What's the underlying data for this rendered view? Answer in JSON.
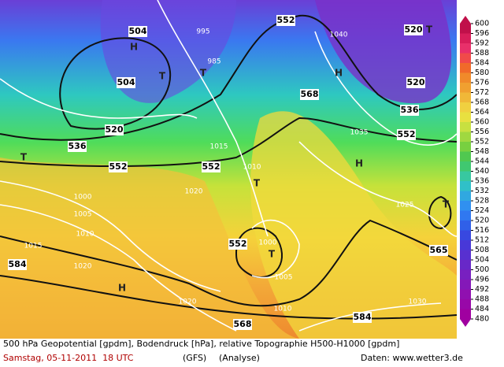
{
  "map": {
    "labels": [
      "504",
      "504",
      "520",
      "536",
      "552",
      "552",
      "552",
      "568",
      "536",
      "552",
      "520",
      "520",
      "552",
      "568",
      "584",
      "584",
      "565",
      "1000",
      "1005",
      "1010",
      "1015",
      "1020",
      "1025",
      "1035",
      "1040",
      "1020",
      "1015",
      "1010",
      "1005",
      "1000",
      "985",
      "995",
      "1030",
      "1020",
      "1010",
      "T",
      "T",
      "T",
      "T",
      "T",
      "H",
      "H",
      "H",
      "H",
      "T",
      "T"
    ]
  },
  "legend": {
    "ticks": [
      600,
      596,
      592,
      588,
      584,
      580,
      576,
      572,
      568,
      564,
      560,
      556,
      552,
      548,
      544,
      540,
      536,
      532,
      528,
      524,
      520,
      516,
      512,
      508,
      504,
      500,
      496,
      492,
      488,
      484,
      480
    ]
  },
  "footer": {
    "line1": "500 hPa Geopotential [gpdm], Bodendruck [hPa], relative Topographie H500-H1000 [gpdm]",
    "date": "Samstag, 05-11-2011  18 UTC",
    "model": "(GFS)",
    "run": "(Analyse)",
    "source": "Daten: www.wetter3.de"
  }
}
